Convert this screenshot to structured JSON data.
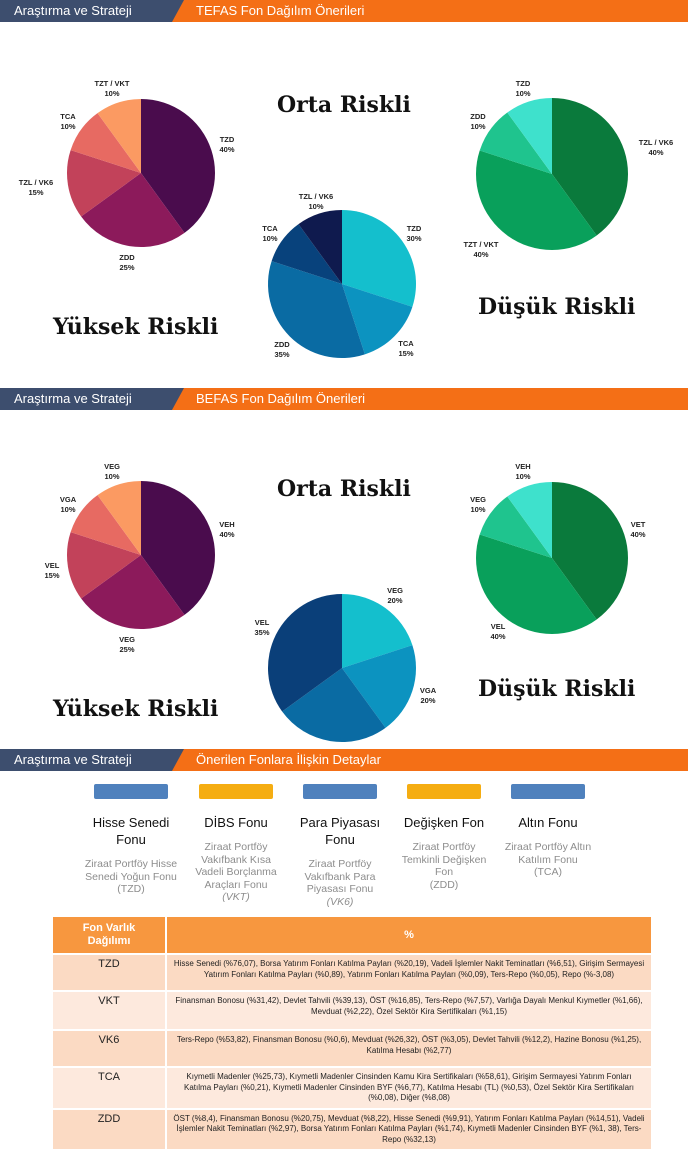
{
  "banners": [
    {
      "left": "Araştırma ve Strateji",
      "right": "TEFAS Fon Dağılım Önerileri"
    },
    {
      "left": "Araştırma ve Strateji",
      "right": "BEFAS Fon Dağılım Önerileri"
    },
    {
      "left": "Araştırma ve Strateji",
      "right": "Önerilen Fonlara İlişkin Detaylar"
    }
  ],
  "tefas": {
    "labels": {
      "high": "Yüksek Riskli",
      "mid": "Orta Riskli",
      "low": "Düşük Riskli"
    },
    "high": [
      {
        "name": "TZD",
        "pct": "40%",
        "value": 40,
        "color": "#4a0c4d"
      },
      {
        "name": "ZDD",
        "pct": "25%",
        "value": 25,
        "color": "#8c1a5b"
      },
      {
        "name": "TZL / VK6",
        "pct": "15%",
        "value": 15,
        "color": "#c2425a"
      },
      {
        "name": "TCA",
        "pct": "10%",
        "value": 10,
        "color": "#e76a62"
      },
      {
        "name": "TZT / VKT",
        "pct": "10%",
        "value": 10,
        "color": "#fb9a62"
      }
    ],
    "mid": [
      {
        "name": "TZD",
        "pct": "30%",
        "value": 30,
        "color": "#14bfcd"
      },
      {
        "name": "TCA",
        "pct": "15%",
        "value": 15,
        "color": "#0c93c0"
      },
      {
        "name": "ZDD",
        "pct": "35%",
        "value": 35,
        "color": "#0a6ba3"
      },
      {
        "name": "TCA",
        "pct": "10%",
        "value": 10,
        "color": "#08427c"
      },
      {
        "name": "TZL / VK6",
        "pct": "10%",
        "value": 10,
        "color": "#0f1a4e"
      }
    ],
    "low": [
      {
        "name": "TZL / VK6",
        "pct": "40%",
        "value": 40,
        "color": "#0a7a3c"
      },
      {
        "name": "TZT / VKT",
        "pct": "40%",
        "value": 40,
        "color": "#09a05b"
      },
      {
        "name": "ZDD",
        "pct": "10%",
        "value": 10,
        "color": "#1fc48e"
      },
      {
        "name": "TZD",
        "pct": "10%",
        "value": 10,
        "color": "#3ee1cc"
      }
    ]
  },
  "befas": {
    "labels": {
      "high": "Yüksek Riskli",
      "mid": "Orta Riskli",
      "low": "Düşük Riskli"
    },
    "high": [
      {
        "name": "VEH",
        "pct": "40%",
        "value": 40,
        "color": "#4a0c4d"
      },
      {
        "name": "VEG",
        "pct": "25%",
        "value": 25,
        "color": "#8c1a5b"
      },
      {
        "name": "VEL",
        "pct": "15%",
        "value": 15,
        "color": "#c2425a"
      },
      {
        "name": "VGA",
        "pct": "10%",
        "value": 10,
        "color": "#e76a62"
      },
      {
        "name": "VEG",
        "pct": "10%",
        "value": 10,
        "color": "#fb9a62"
      }
    ],
    "mid": [
      {
        "name": "VEG",
        "pct": "20%",
        "value": 20,
        "color": "#14bfcd"
      },
      {
        "name": "VGA",
        "pct": "20%",
        "value": 20,
        "color": "#0c93c0"
      },
      {
        "name": "",
        "pct": "",
        "value": 25,
        "color": "#0a6ba3"
      },
      {
        "name": "VEL",
        "pct": "35%",
        "value": 35,
        "color": "#0a3f79"
      }
    ],
    "low": [
      {
        "name": "VET",
        "pct": "40%",
        "value": 40,
        "color": "#0a7a3c"
      },
      {
        "name": "VEL",
        "pct": "40%",
        "value": 40,
        "color": "#09a05b"
      },
      {
        "name": "VEG",
        "pct": "10%",
        "value": 10,
        "color": "#1fc48e"
      },
      {
        "name": "VEH",
        "pct": "10%",
        "value": 10,
        "color": "#3ee1cc"
      }
    ]
  },
  "funds": [
    {
      "type": "Hisse Senedi Fonu",
      "name": "Ziraat Portföy Hisse Senedi Yoğun Fonu",
      "code": "(TZD)",
      "color": "#4f81bd"
    },
    {
      "type": "DİBS Fonu",
      "name": "Ziraat Portföy Vakıfbank Kısa Vadeli Borçlanma Araçları Fonu",
      "code": "(VKT)",
      "color": "#f5ad12"
    },
    {
      "type": "Para Piyasası Fonu",
      "name": "Ziraat Portföy Vakıfbank Para Piyasası Fonu",
      "code": "(VK6)",
      "color": "#4f81bd"
    },
    {
      "type": "Değişken Fon",
      "name": "Ziraat Portföy Temkinli Değişken Fon",
      "code": "(ZDD)",
      "color": "#f5ad12"
    },
    {
      "type": "Altın Fonu",
      "name": "Ziraat Portföy Altın Katılım Fonu",
      "code": "(TCA)",
      "color": "#4f81bd"
    }
  ],
  "table": {
    "headers": [
      "Fon Varlık Dağılımı",
      "%"
    ],
    "rows": [
      {
        "code": "TZD",
        "desc": "Hisse Senedi (%76,07), Borsa Yatırım Fonları Katılma Payları (%20,19), Vadeli İşlemler Nakit Teminatları (%6,51), Girişim Sermayesi Yatırım Fonları Katılma Payları (%0,89), Yatırım Fonları Katılma Payları (%0,09), Ters-Repo (%0,05), Repo (%-3,08)"
      },
      {
        "code": "VKT",
        "desc": "Finansman Bonosu (%31,42), Devlet Tahvili (%39,13), ÖST (%16,85), Ters-Repo (%7,57), Varlığa Dayalı Menkul Kıymetler (%1,66), Mevduat (%2,22), Özel Sektör Kira Sertifikaları (%1,15)"
      },
      {
        "code": "VK6",
        "desc": "Ters-Repo (%53,82), Finansman Bonosu (%0,6), Mevduat (%26,32), ÖST (%3,05), Devlet Tahvili (%12,2), Hazine Bonosu (%1,25), Katılma Hesabı (%2,77)"
      },
      {
        "code": "TCA",
        "desc": "Kıymetli Madenler (%25,73), Kıymetli Madenler Cinsinden Kamu Kira Sertifikaları (%58,61), Girişim Sermayesi Yatırım Fonları Katılma Payları (%0,21), Kıymetli Madenler Cinsinden BYF (%6,77), Katılma Hesabı (TL) (%0,53), Özel Sektör Kira Sertifikaları (%0,08), Diğer (%8,08)"
      },
      {
        "code": "ZDD",
        "desc": "ÖST (%8,4), Finansman Bonosu (%20,75), Mevduat (%8,22), Hisse Senedi (%9,91), Yatırım Fonları Katılma Payları (%14,51), Vadeli İşlemler Nakit Teminatları (%2,97), Borsa Yatırım Fonları Katılma Payları (%1,74), Kıymetli Madenler Cinsinden BYF (%1, 38), Ters-Repo (%32,13)"
      }
    ]
  }
}
